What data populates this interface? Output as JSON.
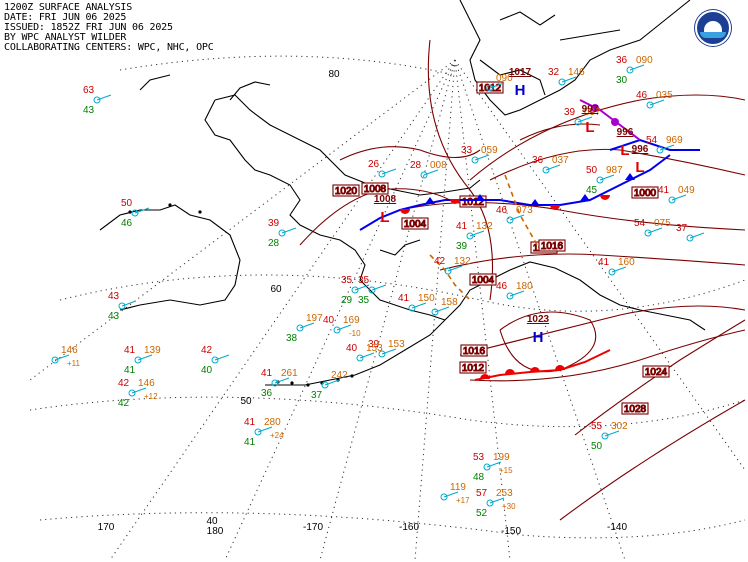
{
  "header": {
    "line1": "1200Z SURFACE ANALYSIS",
    "line2": "DATE: FRI JUN 06 2025",
    "line3": "ISSUED: 1852Z FRI JUN 06 2025",
    "line4": "BY WPC ANALYST WILDER",
    "line5": "COLLABORATING CENTERS: WPC, NHC, OPC"
  },
  "logo_icon": "noaa-logo-icon",
  "colors": {
    "temp": "#cc0000",
    "dewpoint": "#008000",
    "pressure": "#cc6600",
    "station": "#00aacc",
    "isobar": "#7a0000",
    "cold_front": "#0000ee",
    "warm_front": "#ee0000",
    "occluded_front": "#aa00cc",
    "trough": "#cc6600",
    "high": "#0000cc",
    "low": "#dd0000",
    "land": "#000000",
    "grid": "#333333"
  },
  "grid_labels": {
    "lat": [
      "80",
      "60",
      "50",
      "40"
    ],
    "lon": [
      "170",
      "180",
      "-170",
      "-160",
      "-150",
      "-140"
    ]
  },
  "pressure_centers": [
    {
      "kind": "H",
      "value": "1023"
    },
    {
      "kind": "H",
      "value": "1017"
    },
    {
      "kind": "L",
      "value": "1008"
    },
    {
      "kind": "L",
      "value": "997"
    },
    {
      "kind": "L",
      "value": "996"
    },
    {
      "kind": "L",
      "value": "996"
    }
  ],
  "isobar_labels": [
    "1024",
    "1028",
    "1016",
    "1012",
    "1008",
    "1004",
    "1000",
    "1020",
    "1020",
    "1012",
    "1016",
    "1004",
    "1012"
  ],
  "stations": [
    {
      "t": "63",
      "td": "43",
      "p": ""
    },
    {
      "t": "50",
      "td": "46",
      "p": ""
    },
    {
      "t": "43",
      "td": "43",
      "p": ""
    },
    {
      "t": "",
      "td": "",
      "p": "146",
      "tend": "+11"
    },
    {
      "t": "41",
      "td": "41",
      "p": "139"
    },
    {
      "t": "42",
      "td": "42",
      "p": "146",
      "tend": "+12"
    },
    {
      "t": "42",
      "td": "40",
      "p": ""
    },
    {
      "t": "41",
      "td": "36",
      "p": "261"
    },
    {
      "t": "",
      "td": "37",
      "p": "242"
    },
    {
      "t": "41",
      "td": "41",
      "p": "280",
      "tend": "+24"
    },
    {
      "t": "39",
      "td": "28",
      "p": ""
    },
    {
      "t": "35",
      "td": "29",
      "p": ""
    },
    {
      "t": "",
      "td": "38",
      "p": "197"
    },
    {
      "t": "40",
      "td": "",
      "p": "169",
      "tend": "-10"
    },
    {
      "t": "35",
      "td": "35",
      "p": ""
    },
    {
      "t": "39",
      "td": "",
      "p": "153"
    },
    {
      "t": "40",
      "td": "",
      "p": "153"
    },
    {
      "t": "41",
      "td": "",
      "p": "150"
    },
    {
      "t": "",
      "td": "",
      "p": "158"
    },
    {
      "t": "26",
      "td": "",
      "p": ""
    },
    {
      "t": "28",
      "td": "",
      "p": "008"
    },
    {
      "t": "33",
      "td": "",
      "p": "059"
    },
    {
      "t": "",
      "td": "",
      "p": "090"
    },
    {
      "t": "36",
      "td": "",
      "p": "037"
    },
    {
      "t": "50",
      "td": "45",
      "p": "987"
    },
    {
      "t": "54",
      "td": "",
      "p": "969"
    },
    {
      "t": "46",
      "td": "",
      "p": "035"
    },
    {
      "t": "36",
      "td": "30",
      "p": "090"
    },
    {
      "t": "41",
      "td": "39",
      "p": "132"
    },
    {
      "t": "46",
      "td": "",
      "p": "073"
    },
    {
      "t": "41",
      "td": "",
      "p": "160"
    },
    {
      "t": "46",
      "td": "",
      "p": "180"
    },
    {
      "t": "42",
      "td": "",
      "p": "132"
    },
    {
      "t": "53",
      "td": "48",
      "p": "199",
      "tend": "+15"
    },
    {
      "t": "",
      "td": "",
      "p": "119",
      "tend": "+17"
    },
    {
      "t": "57",
      "td": "52",
      "p": "253",
      "tend": "+30"
    },
    {
      "t": "55",
      "td": "50",
      "p": "302"
    },
    {
      "t": "54",
      "td": "",
      "p": "075"
    },
    {
      "t": "41",
      "td": "",
      "p": "049"
    },
    {
      "t": "37",
      "td": "",
      "p": ""
    },
    {
      "t": "32",
      "td": "",
      "p": "146"
    },
    {
      "t": "39",
      "td": "",
      "p": "097"
    }
  ]
}
